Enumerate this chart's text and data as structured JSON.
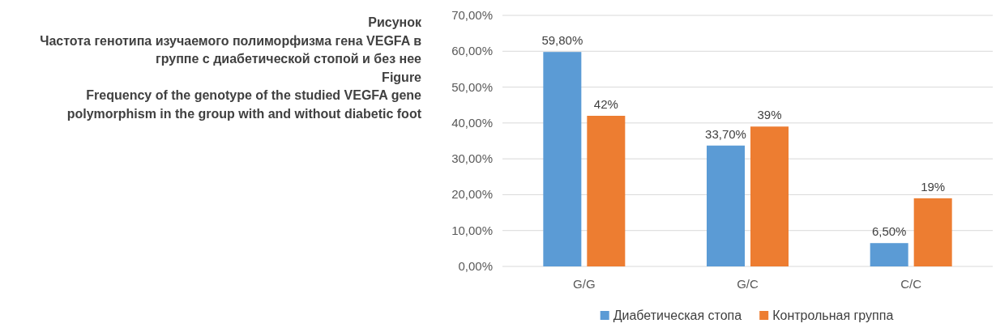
{
  "chart_data": {
    "type": "bar",
    "title": "Рисунок",
    "subtitle": "Частота генотипа изучаемого полиморфизма гена VEGFA в группе с диабетической стопой и без нее",
    "annotations": [
      "Figure",
      "Frequency of the genotype of the studied VEGFA gene polymorphism in the group with and without diabetic foot"
    ],
    "categories": [
      "G/G",
      "G/C",
      "C/C"
    ],
    "series": [
      {
        "name": "Диабетическая стопа",
        "color": "#5b9bd5",
        "values": [
          59.8,
          33.7,
          6.5
        ],
        "value_labels": [
          "59,80%",
          "33,70%",
          "6,50%"
        ]
      },
      {
        "name": "Контрольная группа",
        "color": "#ed7d31",
        "values": [
          42,
          39,
          19
        ],
        "value_labels": [
          "42%",
          "39%",
          "19%"
        ]
      }
    ],
    "ylim": [
      0,
      70
    ],
    "yticks": [
      {
        "value": 0,
        "label": "0,00%"
      },
      {
        "value": 10,
        "label": "10,00%"
      },
      {
        "value": 20,
        "label": "20,00%"
      },
      {
        "value": 30,
        "label": "30,00%"
      },
      {
        "value": 40,
        "label": "40,00%"
      },
      {
        "value": 50,
        "label": "50,00%"
      },
      {
        "value": 60,
        "label": "60,00%"
      },
      {
        "value": 70,
        "label": "70,00%"
      }
    ],
    "grid": "y",
    "legend": "bottom"
  }
}
